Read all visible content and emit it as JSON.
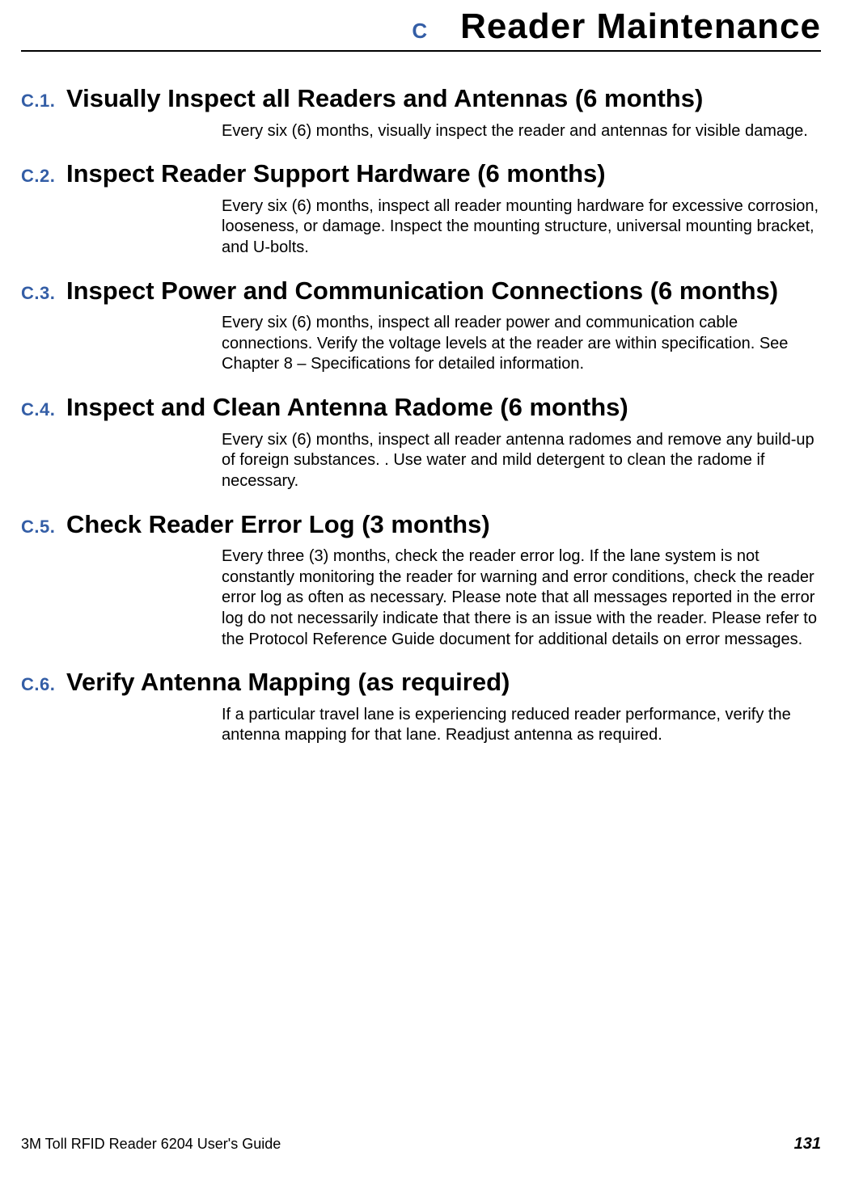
{
  "colors": {
    "accent": "#345ea6",
    "text": "#000000",
    "background": "#ffffff",
    "rule": "#000000"
  },
  "typography": {
    "header_letter_fontsize": 26,
    "header_title_fontsize": 44,
    "section_num_fontsize": 22,
    "section_title_fontsize": 31,
    "body_fontsize": 20,
    "footer_fontsize": 18,
    "page_num_fontsize": 20
  },
  "header": {
    "letter": "C",
    "title": "Reader Maintenance"
  },
  "sections": [
    {
      "num": "C.1.",
      "title": "Visually Inspect all Readers and Antennas (6 months)",
      "body": "Every six (6) months, visually inspect the reader and antennas for visible damage."
    },
    {
      "num": "C.2.",
      "title": "Inspect Reader Support Hardware (6 months)",
      "body": "Every six (6) months, inspect all reader mounting hardware for excessive corrosion, looseness, or damage. Inspect the mounting structure, universal mounting bracket, and U-bolts."
    },
    {
      "num": "C.3.",
      "title": "Inspect Power and Communication Connections (6 months)",
      "body": "Every six (6) months, inspect all reader power and communication cable connections. Verify the voltage levels at the reader are within specification. See Chapter 8 – Specifications for detailed information."
    },
    {
      "num": "C.4.",
      "title": "Inspect and Clean Antenna Radome (6 months)",
      "body": "Every six (6) months, inspect all reader antenna radomes and remove any build-up of foreign substances. . Use water and mild detergent to clean the radome if necessary."
    },
    {
      "num": "C.5.",
      "title": "Check Reader Error Log (3 months)",
      "body": "Every three (3) months, check the reader error log. If the lane system is not constantly monitoring the reader for warning and error conditions, check the reader error log as often as necessary. Please note that all messages reported in the error log do not necessarily indicate that there is an issue with the reader.  Please refer to the Protocol Reference Guide document for additional details on error messages."
    },
    {
      "num": "C.6.",
      "title": "Verify Antenna Mapping (as required)",
      "body": "If a particular travel lane is experiencing reduced reader performance, verify the antenna mapping for that lane. Readjust antenna as required."
    }
  ],
  "footer": {
    "left": "3M Toll RFID Reader 6204 User's Guide",
    "page": "131"
  }
}
